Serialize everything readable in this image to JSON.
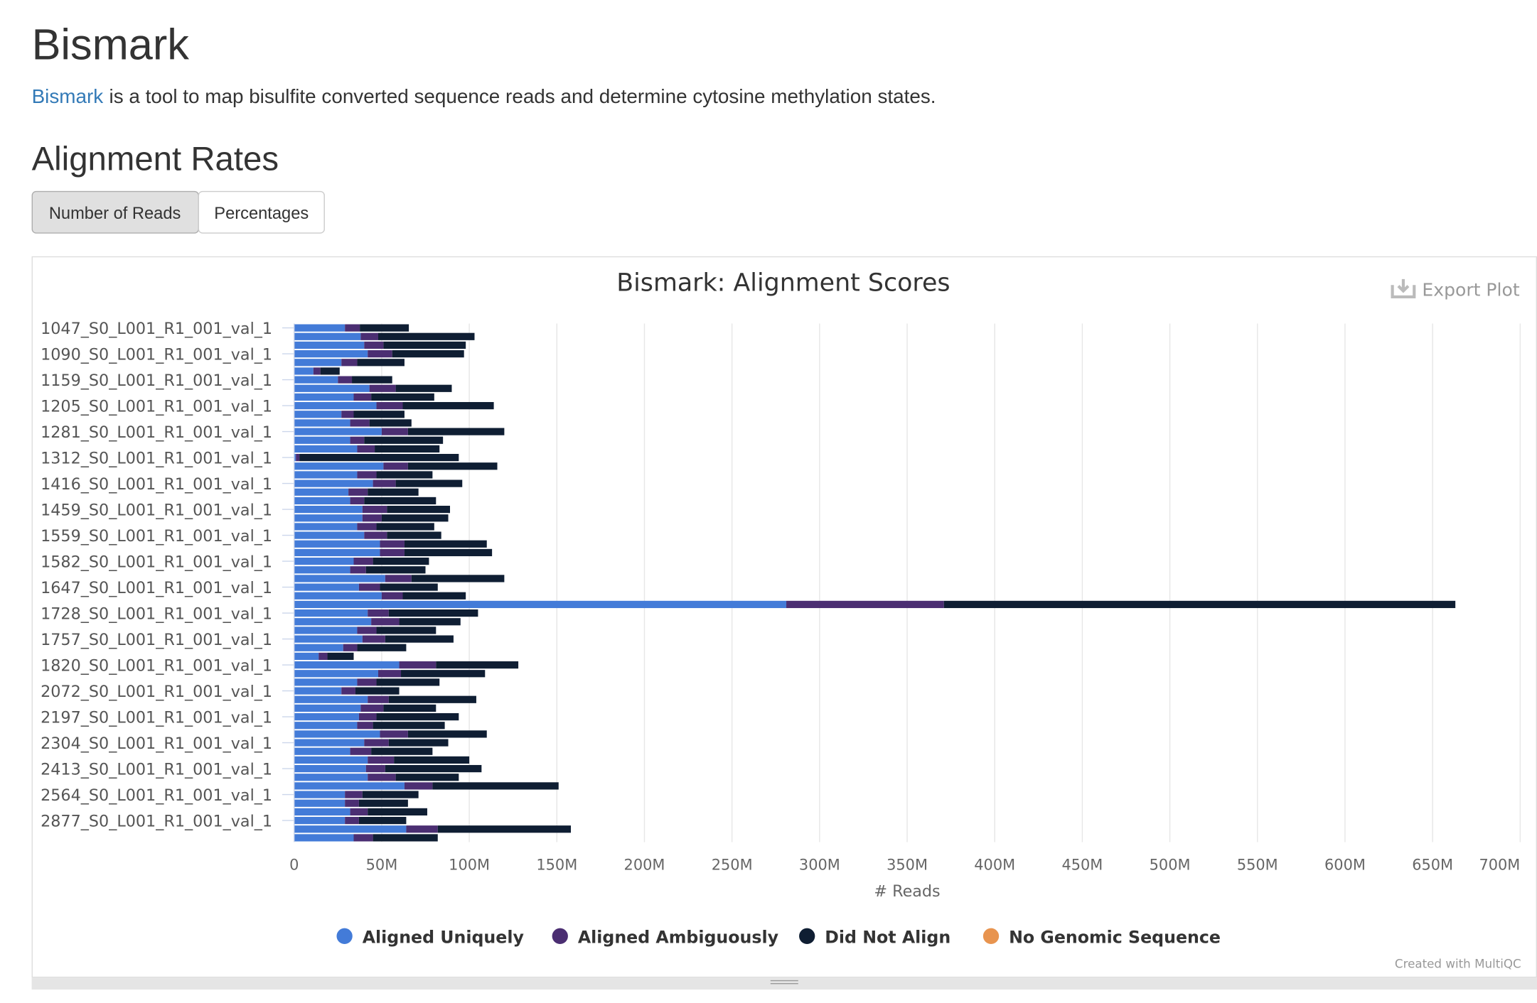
{
  "header": {
    "title": "Bismark",
    "intro_link": "Bismark",
    "intro_text": "is a tool to map bisulfite converted sequence reads and determine cytosine methylation states.",
    "section": "Alignment Rates",
    "buttons": [
      "Number of Reads",
      "Percentages"
    ],
    "export": "Export Plot",
    "credit": "Created with MultiQC"
  },
  "chart_data": {
    "type": "bar",
    "orientation": "horizontal",
    "stacked": true,
    "title": "Bismark: Alignment Scores",
    "xlabel": "# Reads",
    "categories": [
      "1047_S0_L001_R1_001_val_1",
      null,
      null,
      "1090_S0_L001_R1_001_val_1",
      null,
      null,
      "1159_S0_L001_R1_001_val_1",
      null,
      null,
      "1205_S0_L001_R1_001_val_1",
      null,
      null,
      "1281_S0_L001_R1_001_val_1",
      null,
      null,
      "1312_S0_L001_R1_001_val_1",
      null,
      null,
      "1416_S0_L001_R1_001_val_1",
      null,
      null,
      "1459_S0_L001_R1_001_val_1",
      null,
      null,
      "1559_S0_L001_R1_001_val_1",
      null,
      null,
      "1582_S0_L001_R1_001_val_1",
      null,
      null,
      "1647_S0_L001_R1_001_val_1",
      null,
      null,
      "1728_S0_L001_R1_001_val_1",
      null,
      null,
      "1757_S0_L001_R1_001_val_1",
      null,
      null,
      "1820_S0_L001_R1_001_val_1",
      null,
      null,
      "2072_S0_L001_R1_001_val_1",
      null,
      null,
      "2197_S0_L001_R1_001_val_1",
      null,
      null,
      "2304_S0_L001_R1_001_val_1",
      null,
      null,
      "2413_S0_L001_R1_001_val_1",
      null,
      null,
      "2564_S0_L001_R1_001_val_1",
      null,
      null,
      "2877_S0_L001_R1_001_val_1",
      null,
      null
    ],
    "series": [
      {
        "name": "Aligned Uniquely",
        "color": "#437bd8",
        "values": [
          29000000,
          38000000,
          40000000,
          42000000,
          27000000,
          11000000,
          25000000,
          43000000,
          34000000,
          47000000,
          27000000,
          32000000,
          50000000,
          32000000,
          36000000,
          1000000,
          51000000,
          36000000,
          45000000,
          31000000,
          32000000,
          39000000,
          39000000,
          36000000,
          40000000,
          49000000,
          49000000,
          34000000,
          32000000,
          52000000,
          37000000,
          50000000,
          281000000,
          42000000,
          44000000,
          36000000,
          39000000,
          28000000,
          14000000,
          60000000,
          48000000,
          36000000,
          27000000,
          42000000,
          38000000,
          37000000,
          36000000,
          49000000,
          40000000,
          32000000,
          42000000,
          41000000,
          42000000,
          63000000,
          29000000,
          29000000,
          32000000,
          29000000,
          64000000,
          34000000
        ]
      },
      {
        "name": "Aligned Ambiguously",
        "color": "#4b2e72",
        "values": [
          8500000,
          10000000,
          11000000,
          14000000,
          9000000,
          4000000,
          8000000,
          15000000,
          10000000,
          15000000,
          7000000,
          11000000,
          15000000,
          8000000,
          10000000,
          2000000,
          14000000,
          11000000,
          13000000,
          11000000,
          8000000,
          14000000,
          11000000,
          11000000,
          13000000,
          14000000,
          14000000,
          11000000,
          9000000,
          15000000,
          12000000,
          12000000,
          90000000,
          12000000,
          16000000,
          11000000,
          13000000,
          8000000,
          5000000,
          21000000,
          13000000,
          11000000,
          8000000,
          12000000,
          13000000,
          10000000,
          9000000,
          16000000,
          14000000,
          12000000,
          15000000,
          11000000,
          16000000,
          16000000,
          10000000,
          8000000,
          10000000,
          8000000,
          18000000,
          11000000
        ]
      },
      {
        "name": "Did Not Align",
        "color": "#0f1e33",
        "values": [
          28000000,
          55000000,
          47000000,
          41000000,
          27000000,
          11000000,
          23000000,
          32000000,
          36000000,
          52000000,
          29000000,
          24000000,
          55000000,
          45000000,
          37000000,
          91000000,
          51000000,
          32000000,
          38000000,
          29000000,
          41000000,
          36000000,
          38000000,
          33000000,
          31000000,
          47000000,
          50000000,
          32000000,
          34000000,
          53000000,
          33000000,
          36000000,
          292000000,
          51000000,
          35000000,
          34000000,
          39000000,
          28000000,
          15000000,
          47000000,
          48000000,
          36000000,
          25000000,
          50000000,
          30000000,
          47000000,
          41000000,
          45000000,
          34000000,
          35000000,
          43000000,
          55000000,
          36000000,
          72000000,
          32000000,
          28000000,
          34000000,
          27000000,
          76000000,
          37000000
        ]
      },
      {
        "name": "No Genomic Sequence",
        "color": "#e8944f",
        "values": [
          0,
          0,
          0,
          0,
          0,
          0,
          0,
          0,
          0,
          0,
          0,
          0,
          0,
          0,
          0,
          0,
          0,
          0,
          0,
          0,
          0,
          0,
          0,
          0,
          0,
          0,
          0,
          0,
          0,
          0,
          0,
          0,
          0,
          0,
          0,
          0,
          0,
          0,
          0,
          0,
          0,
          0,
          0,
          0,
          0,
          0,
          0,
          0,
          0,
          0,
          0,
          0,
          0,
          0,
          0,
          0,
          0,
          0,
          0,
          0
        ]
      }
    ],
    "xlim": [
      0,
      700000000
    ],
    "xticks": [
      0,
      {
        "value": 50000000,
        "label": "50M"
      },
      {
        "value": 100000000,
        "label": "100M"
      },
      {
        "value": 150000000,
        "label": "150M"
      },
      {
        "value": 200000000,
        "label": "200M"
      },
      {
        "value": 250000000,
        "label": "250M"
      },
      {
        "value": 300000000,
        "label": "300M"
      },
      {
        "value": 350000000,
        "label": "350M"
      },
      {
        "value": 400000000,
        "label": "400M"
      },
      {
        "value": 450000000,
        "label": "450M"
      },
      {
        "value": 500000000,
        "label": "500M"
      },
      {
        "value": 550000000,
        "label": "550M"
      },
      {
        "value": 600000000,
        "label": "600M"
      },
      {
        "value": 650000000,
        "label": "650M"
      },
      {
        "value": 700000000,
        "label": "700M"
      }
    ],
    "grid": true,
    "legend": "bottom"
  }
}
